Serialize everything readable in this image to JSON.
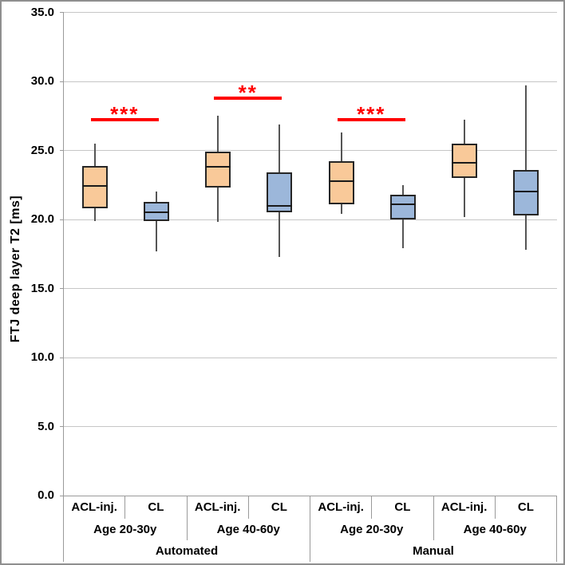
{
  "chart_data": {
    "type": "boxplot",
    "title": "",
    "ylabel": "FTJ deep layer T2 [ms]",
    "xlabel": "",
    "ylim": [
      0,
      35
    ],
    "grid": true,
    "legend_position": "none",
    "yticks": [
      {
        "value": 35,
        "label": "35.0"
      },
      {
        "value": 30,
        "label": "30.0"
      },
      {
        "value": 25,
        "label": "25.0"
      },
      {
        "value": 20,
        "label": "20.0"
      },
      {
        "value": 15,
        "label": "15.0"
      },
      {
        "value": 10,
        "label": "10.0"
      },
      {
        "value": 5,
        "label": "5.0"
      },
      {
        "value": 0,
        "label": "0.0"
      }
    ],
    "x_axis_rows": [
      {
        "name": "subject",
        "labels": [
          "ACL-inj.",
          "CL",
          "ACL-inj.",
          "CL",
          "ACL-inj.",
          "CL",
          "ACL-inj.",
          "CL"
        ]
      },
      {
        "name": "age-group",
        "labels": [
          "Age 20-30y",
          "Age 40-60y",
          "Age 20-30y",
          "Age 40-60y"
        ]
      },
      {
        "name": "method",
        "labels": [
          "Automated",
          "Manual"
        ]
      }
    ],
    "series_colors": {
      "ACL-inj.": "#F9C999",
      "CL": "#9CB7DA"
    },
    "boxes": [
      {
        "method": "Automated",
        "age_group": "Age 20-30y",
        "group": "ACL-inj.",
        "whisker_min": 19.9,
        "q1": 20.8,
        "median": 22.4,
        "q3": 23.9,
        "whisker_max": 25.5
      },
      {
        "method": "Automated",
        "age_group": "Age 20-30y",
        "group": "CL",
        "whisker_min": 17.7,
        "q1": 19.9,
        "median": 20.5,
        "q3": 21.3,
        "whisker_max": 22.0
      },
      {
        "method": "Automated",
        "age_group": "Age 40-60y",
        "group": "ACL-inj.",
        "whisker_min": 19.8,
        "q1": 22.3,
        "median": 23.8,
        "q3": 24.9,
        "whisker_max": 27.5
      },
      {
        "method": "Automated",
        "age_group": "Age 40-60y",
        "group": "CL",
        "whisker_min": 17.3,
        "q1": 20.5,
        "median": 21.0,
        "q3": 23.4,
        "whisker_max": 26.9
      },
      {
        "method": "Manual",
        "age_group": "Age 20-30y",
        "group": "ACL-inj.",
        "whisker_min": 20.4,
        "q1": 21.1,
        "median": 22.8,
        "q3": 24.2,
        "whisker_max": 26.3
      },
      {
        "method": "Manual",
        "age_group": "Age 20-30y",
        "group": "CL",
        "whisker_min": 17.9,
        "q1": 20.0,
        "median": 21.1,
        "q3": 21.8,
        "whisker_max": 22.5
      },
      {
        "method": "Manual",
        "age_group": "Age 40-60y",
        "group": "ACL-inj.",
        "whisker_min": 20.2,
        "q1": 23.0,
        "median": 24.1,
        "q3": 25.5,
        "whisker_max": 27.2
      },
      {
        "method": "Manual",
        "age_group": "Age 40-60y",
        "group": "CL",
        "whisker_min": 17.8,
        "q1": 20.3,
        "median": 22.0,
        "q3": 23.6,
        "whisker_max": 29.7
      }
    ],
    "significance_bars": [
      {
        "between": [
          0,
          1
        ],
        "y": 27.2,
        "label": "***",
        "color": "#FF0000"
      },
      {
        "between": [
          2,
          3
        ],
        "y": 28.8,
        "label": "**",
        "color": "#FF0000"
      },
      {
        "between": [
          4,
          5
        ],
        "y": 27.2,
        "label": "***",
        "color": "#FF0000"
      }
    ]
  }
}
